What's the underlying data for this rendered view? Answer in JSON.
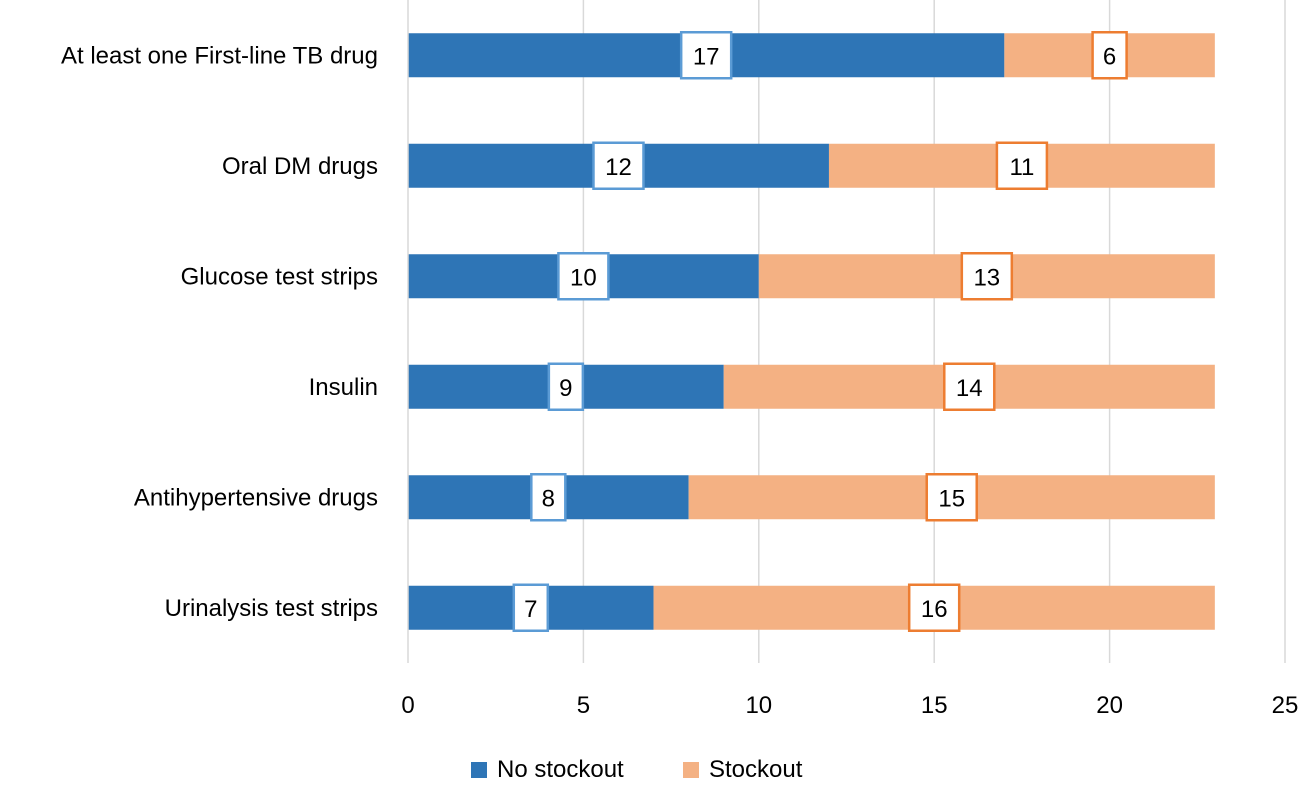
{
  "chart_data": {
    "type": "bar",
    "orientation": "horizontal",
    "stacked": true,
    "categories": [
      "At least one First-line TB drug",
      "Oral DM drugs",
      "Glucose test strips",
      "Insulin",
      "Antihypertensive drugs",
      "Urinalysis test strips"
    ],
    "series": [
      {
        "name": "No stockout",
        "values": [
          17,
          12,
          10,
          9,
          8,
          7
        ],
        "color": "#2E75B6",
        "label_border": "#5B9BD5"
      },
      {
        "name": "Stockout",
        "values": [
          6,
          11,
          13,
          14,
          15,
          16
        ],
        "color": "#F4B183",
        "label_border": "#ED7D31"
      }
    ],
    "x_ticks": [
      "0",
      "5",
      "10",
      "15",
      "20",
      "25"
    ],
    "xlim": [
      0,
      25
    ],
    "grid": "vertical",
    "legend_position": "bottom",
    "title": "",
    "xlabel": "",
    "ylabel": ""
  }
}
